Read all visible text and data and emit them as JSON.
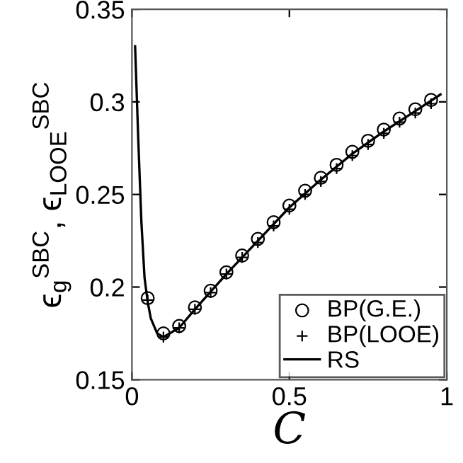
{
  "chart_data": {
    "type": "line",
    "xlabel": "C",
    "ylabel": "ϵ$_{g}$$^{SBC}$, ϵ$_{LOOE}$$^{SBC}$",
    "xlim": [
      0,
      1
    ],
    "ylim": [
      0.15,
      0.35
    ],
    "xticks": [
      0,
      0.5,
      1
    ],
    "yticks": [
      0.15,
      0.2,
      0.25,
      0.3,
      0.35
    ],
    "grid": false,
    "legend": "bottom right",
    "series": [
      {
        "name": "BP(G.E.)",
        "type": "scatter",
        "marker": "circle",
        "color": "#000000",
        "x": [
          0.05,
          0.1,
          0.15,
          0.2,
          0.25,
          0.3,
          0.35,
          0.4,
          0.45,
          0.5,
          0.55,
          0.6,
          0.65,
          0.7,
          0.75,
          0.8,
          0.85,
          0.9,
          0.95
        ],
        "values": [
          0.194,
          0.175,
          0.179,
          0.189,
          0.198,
          0.208,
          0.217,
          0.226,
          0.235,
          0.244,
          0.252,
          0.259,
          0.266,
          0.273,
          0.279,
          0.285,
          0.291,
          0.296,
          0.301
        ]
      },
      {
        "name": "BP(LOOE)",
        "type": "scatter",
        "marker": "cross",
        "color": "#000000",
        "x": [
          0.05,
          0.1,
          0.15,
          0.2,
          0.25,
          0.3,
          0.35,
          0.4,
          0.45,
          0.5,
          0.55,
          0.6,
          0.65,
          0.7,
          0.75,
          0.8,
          0.85,
          0.9,
          0.95
        ],
        "values": [
          0.193,
          0.173,
          0.178,
          0.188,
          0.197,
          0.207,
          0.216,
          0.224,
          0.233,
          0.242,
          0.25,
          0.257,
          0.264,
          0.271,
          0.277,
          0.283,
          0.289,
          0.294,
          0.299
        ]
      },
      {
        "name": "RS",
        "marker": "none",
        "line_style": "solid",
        "color": "#000000",
        "x": [
          0.01,
          0.02,
          0.03,
          0.04,
          0.05,
          0.06,
          0.08,
          0.1,
          0.15,
          0.2,
          0.3,
          0.4,
          0.5,
          0.6,
          0.7,
          0.8,
          0.9,
          0.98
        ],
        "values": [
          0.33,
          0.28,
          0.235,
          0.205,
          0.192,
          0.183,
          0.175,
          0.173,
          0.178,
          0.188,
          0.207,
          0.225,
          0.243,
          0.258,
          0.272,
          0.284,
          0.295,
          0.304
        ]
      }
    ]
  }
}
